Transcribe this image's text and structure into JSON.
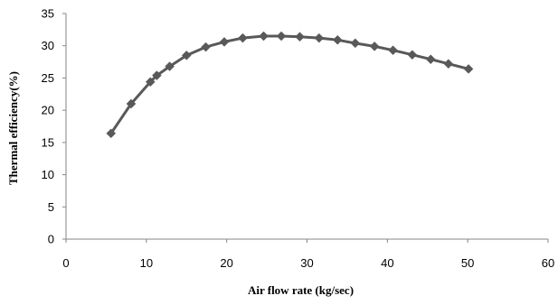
{
  "chart_data": {
    "type": "line",
    "title": "",
    "xlabel": "Air flow rate (kg/sec)",
    "ylabel": "Thermal efficiency(%)",
    "xlim": [
      0,
      60
    ],
    "ylim": [
      0,
      35
    ],
    "x_ticks": [
      "0",
      "10",
      "20",
      "30",
      "40",
      "50",
      "60"
    ],
    "y_ticks": [
      "0",
      "5",
      "10",
      "15",
      "20",
      "25",
      "30",
      "35"
    ],
    "grid": false,
    "legend": "none",
    "colors": {
      "series": "#595959",
      "axis": "#868686"
    },
    "series": [
      {
        "marker": "diamond",
        "x": [
          5.6,
          8.1,
          10.5,
          11.3,
          12.9,
          15.0,
          17.4,
          19.7,
          22.0,
          24.6,
          26.8,
          29.1,
          31.5,
          33.8,
          36.0,
          38.4,
          40.7,
          43.1,
          45.4,
          47.6,
          50.1
        ],
        "y": [
          16.4,
          21.0,
          24.4,
          25.4,
          26.8,
          28.5,
          29.8,
          30.6,
          31.2,
          31.5,
          31.5,
          31.4,
          31.2,
          30.9,
          30.4,
          29.9,
          29.3,
          28.6,
          27.9,
          27.2,
          26.4
        ]
      }
    ]
  }
}
